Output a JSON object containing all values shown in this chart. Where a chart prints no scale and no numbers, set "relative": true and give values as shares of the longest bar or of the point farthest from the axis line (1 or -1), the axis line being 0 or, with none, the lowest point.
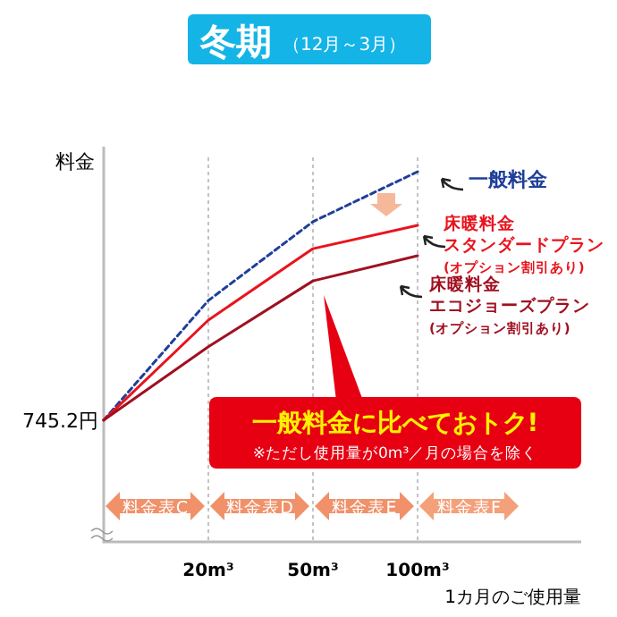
{
  "chart_data": {
    "type": "line",
    "title": "冬期",
    "subtitle": "（12月～3月）",
    "xlabel": "1カ月のご使用量",
    "ylabel": "料金",
    "relative": true,
    "grid": "x",
    "marker": "none",
    "categories": [
      null,
      "20m³",
      "50m³",
      "100m³"
    ],
    "series": [
      {
        "name": "一般料金",
        "color": "#1f3f99",
        "line_style": "dotted",
        "values": [
          0.329,
          0.652,
          0.865,
          1
        ]
      },
      {
        "name": "床暖料金スタンダードプラン(オプション割引あり)",
        "color": "#e8141e",
        "line_style": "solid",
        "values": [
          0.329,
          0.599,
          0.792,
          0.855
        ]
      },
      {
        "name": "床暖料金エコジョーズプラン(オプション割引あり)",
        "color": "#a01020",
        "line_style": "solid",
        "values": [
          0.329,
          0.527,
          0.705,
          0.773
        ]
      }
    ],
    "annotations": [
      "745.2円",
      "一般料金に比べておトク!",
      "※ただし使用量が0m³／月の場合を除く",
      "料金表C",
      "料金表D",
      "料金表E",
      "料金表F"
    ]
  }
}
